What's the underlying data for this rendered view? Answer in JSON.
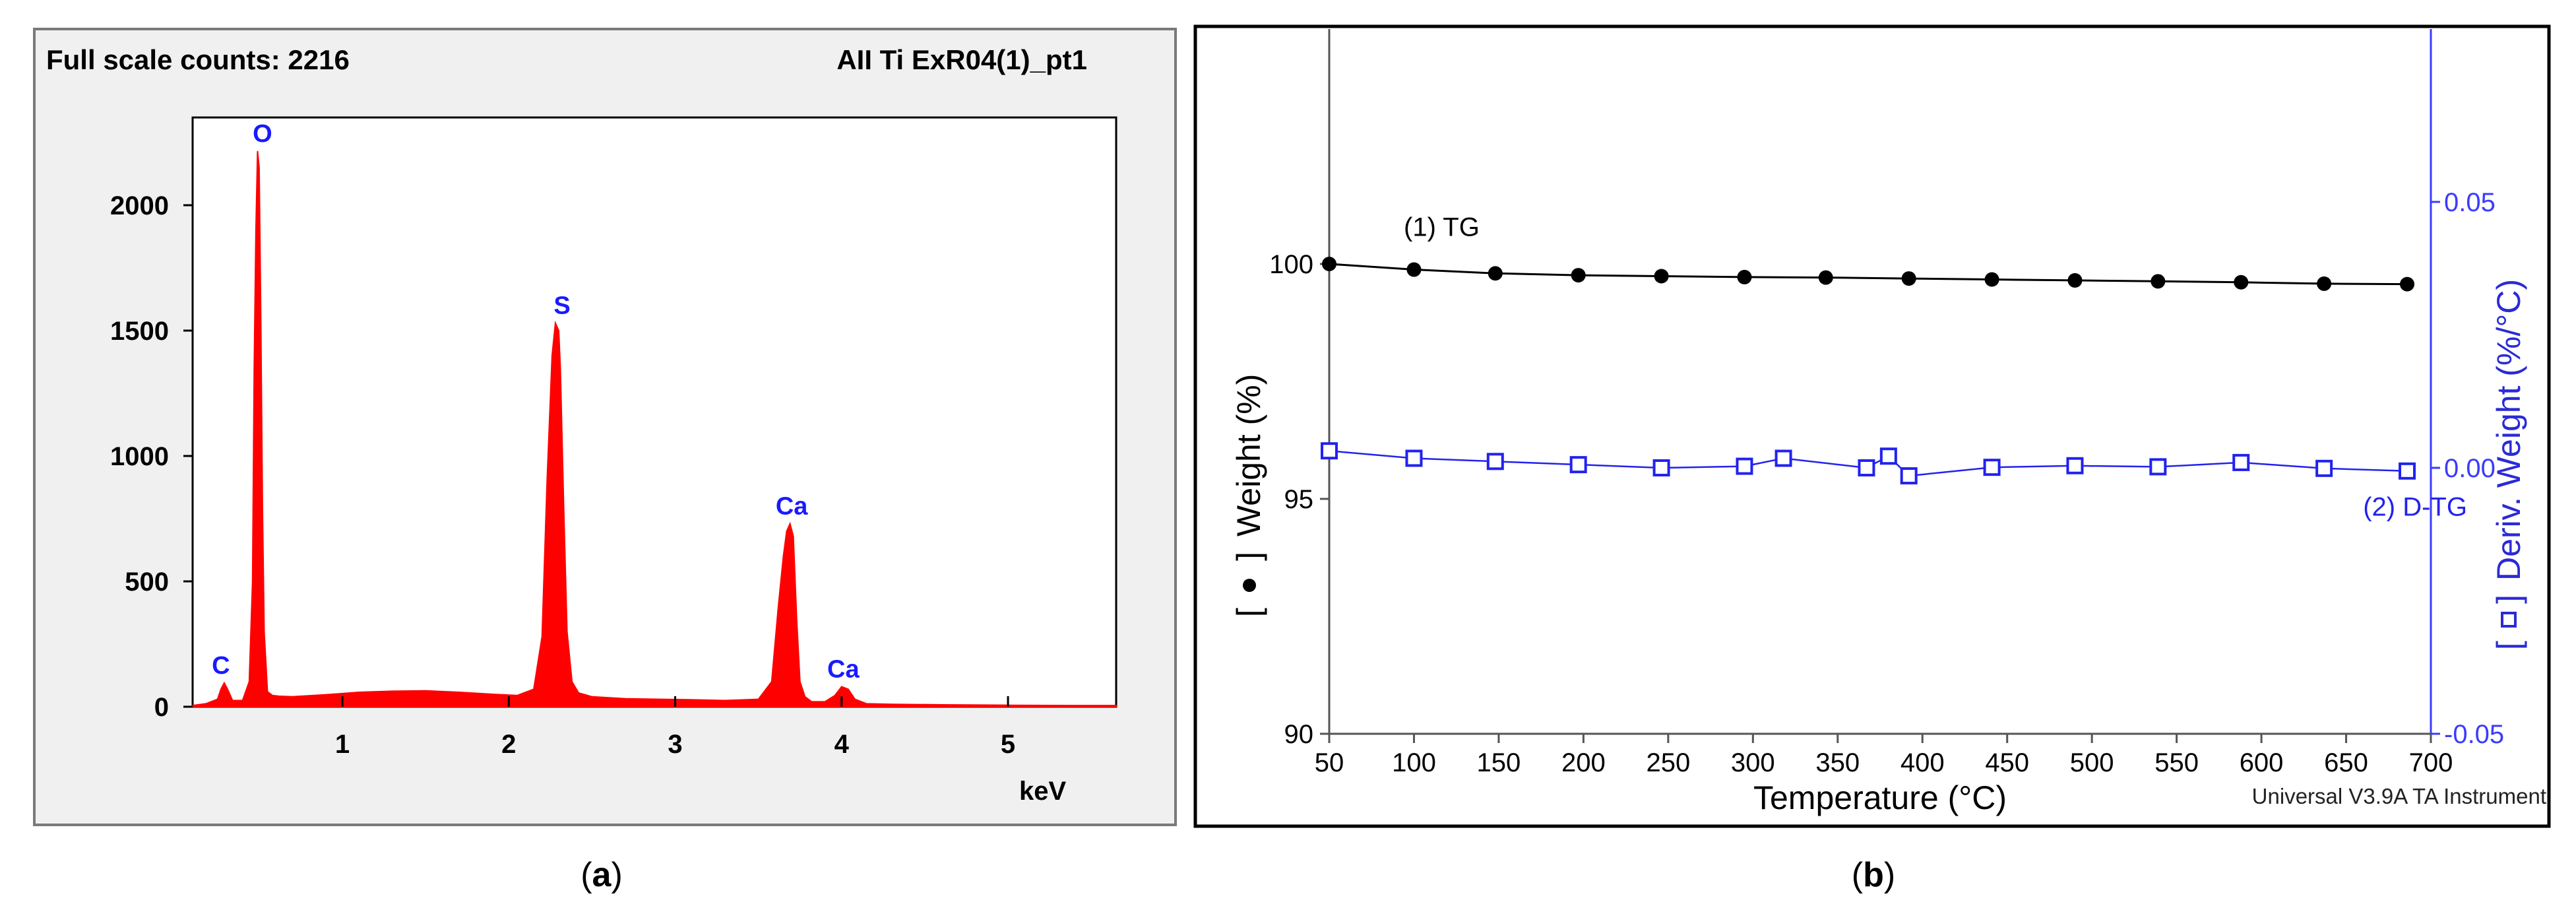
{
  "panels": {
    "a": {
      "caption_open": "(",
      "caption_letter": "a",
      "caption_close": ")",
      "header_left": "Full scale counts: 2216",
      "header_right": "AII Ti ExR04(1)_pt1"
    },
    "b": {
      "caption_open": "(",
      "caption_letter": "b",
      "caption_close": ")",
      "software_label": "Universal V3.9A TA Instrument",
      "left_axis_bracket_open": "[",
      "left_axis_bracket_close": "]",
      "right_axis_bracket_open": "[",
      "right_axis_bracket_close": "]"
    }
  },
  "colors": {
    "eds_fill": "#ff0000",
    "element_label": "#1a1aff",
    "tg_line": "#000000",
    "dtg_line": "#2222ee",
    "right_axis": "#3b3bff",
    "frame_a_bg": "#f0f0f0",
    "frame_a_border": "#7a7a7a"
  },
  "chart_data": [
    {
      "type": "area",
      "title": "Full scale counts: 2216",
      "xlabel": "keV",
      "ylabel": "",
      "xlim": [
        0.1,
        5.65
      ],
      "ylim": [
        0,
        2350
      ],
      "xticks": [
        1,
        2,
        3,
        4,
        5
      ],
      "yticks": [
        0,
        500,
        1000,
        1500,
        2000
      ],
      "grid": false,
      "x": [
        0.1,
        0.18,
        0.25,
        0.27,
        0.29,
        0.31,
        0.34,
        0.4,
        0.44,
        0.46,
        0.47,
        0.48,
        0.49,
        0.5,
        0.51,
        0.52,
        0.53,
        0.55,
        0.58,
        0.62,
        0.7,
        0.9,
        1.1,
        1.3,
        1.5,
        1.7,
        1.9,
        2.05,
        2.15,
        2.2,
        2.23,
        2.26,
        2.28,
        2.3,
        2.31,
        2.33,
        2.35,
        2.38,
        2.42,
        2.5,
        2.7,
        2.9,
        3.1,
        3.3,
        3.5,
        3.58,
        3.62,
        3.65,
        3.67,
        3.69,
        3.71,
        3.73,
        3.75,
        3.78,
        3.82,
        3.9,
        3.96,
        4.0,
        4.04,
        4.08,
        4.15,
        4.3,
        4.6,
        5.0,
        5.4,
        5.65
      ],
      "values": [
        5,
        12,
        30,
        70,
        95,
        70,
        25,
        25,
        100,
        500,
        1350,
        1900,
        2216,
        2150,
        1550,
        800,
        300,
        60,
        45,
        42,
        40,
        48,
        58,
        62,
        64,
        58,
        50,
        45,
        70,
        280,
        900,
        1400,
        1530,
        1500,
        1350,
        800,
        300,
        100,
        55,
        40,
        32,
        30,
        28,
        25,
        30,
        100,
        400,
        600,
        700,
        730,
        680,
        350,
        100,
        40,
        20,
        20,
        45,
        80,
        70,
        30,
        12,
        10,
        8,
        6,
        5,
        5
      ],
      "annotations": [
        {
          "label": "C",
          "x": 0.27,
          "y": 95
        },
        {
          "label": "O",
          "x": 0.52,
          "y": 2216
        },
        {
          "label": "S",
          "x": 2.32,
          "y": 1530
        },
        {
          "label": "Ca",
          "x": 3.7,
          "y": 730
        },
        {
          "label": "Ca",
          "x": 4.01,
          "y": 80
        }
      ]
    },
    {
      "type": "line",
      "title": "",
      "xlabel": "Temperature (°C)",
      "ylabel": "Weight (%)",
      "y2label": "Deriv. Weight (%/°C)",
      "xlim": [
        50,
        700
      ],
      "ylim": [
        90,
        105
      ],
      "y2lim": [
        -0.05,
        0.0825
      ],
      "xticks": [
        50,
        100,
        150,
        200,
        250,
        300,
        350,
        400,
        450,
        500,
        550,
        600,
        650,
        700
      ],
      "yticks": [
        90,
        95,
        100
      ],
      "y2ticks": [
        -0.05,
        0.0,
        0.05
      ],
      "y2tick_labels": [
        "-0.05",
        "0.00",
        "0.05"
      ],
      "grid": false,
      "series": [
        {
          "name": "(1) TG",
          "axis": "left",
          "marker": "filled-circle",
          "x": [
            50,
            100,
            148,
            197,
            246,
            295,
            343,
            392,
            441,
            490,
            539,
            588,
            637,
            686
          ],
          "values": [
            100.0,
            99.88,
            99.8,
            99.76,
            99.74,
            99.72,
            99.71,
            99.69,
            99.67,
            99.65,
            99.63,
            99.61,
            99.58,
            99.57
          ]
        },
        {
          "name": "(2) D-TG",
          "axis": "right",
          "marker": "open-square",
          "x": [
            50,
            100,
            148,
            197,
            246,
            295,
            318,
            367,
            380,
            392,
            441,
            490,
            539,
            588,
            637,
            686
          ],
          "values": [
            0.0032,
            0.0018,
            0.0012,
            0.0006,
            0.0,
            0.0003,
            0.0018,
            0.0,
            0.0022,
            -0.0015,
            0.0001,
            0.0004,
            0.0002,
            0.001,
            -0.0001,
            -0.0006
          ]
        }
      ],
      "annotations": [
        {
          "label": "(1) TG",
          "x": 94,
          "y": 100.6
        },
        {
          "label": "(2) D-TG",
          "x": 660,
          "y": -0.009
        }
      ]
    }
  ]
}
